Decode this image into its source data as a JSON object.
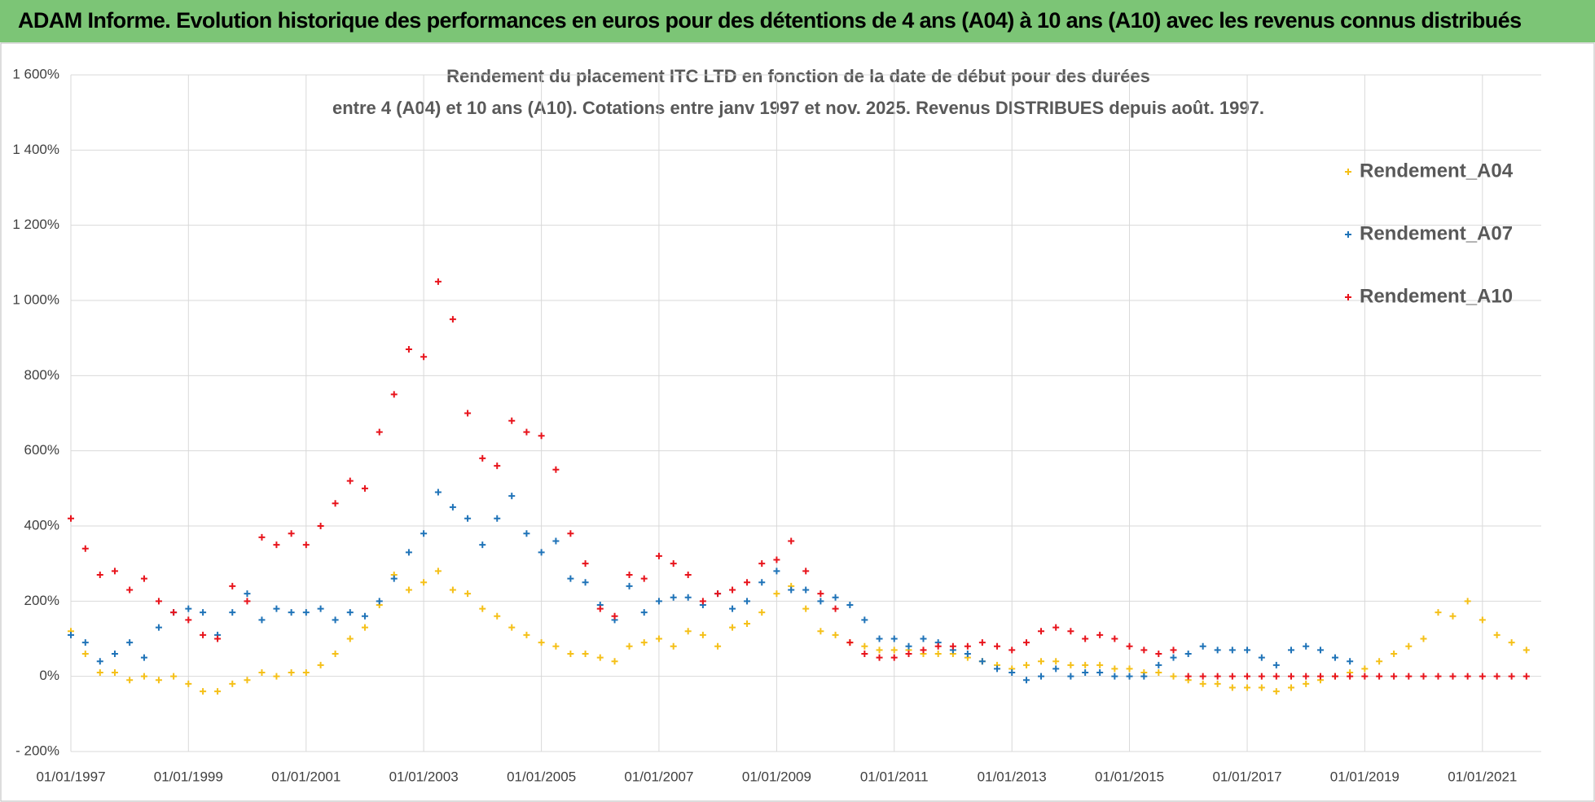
{
  "header": {
    "title": "ADAM Informe. Evolution historique des performances en euros pour des détentions de 4 ans (A04) à 10 ans (A10) avec les revenus connus distribués"
  },
  "chart_data": {
    "type": "scatter",
    "title": [
      "Rendement du placement ITC LTD en fonction de la date de début pour des durées",
      "entre 4 (A04) et 10 ans (A10). Cotations entre janv 1997 et nov. 2025. Revenus DISTRIBUES depuis août. 1997."
    ],
    "x": [
      "1997-01-01",
      "1997-04-01",
      "1997-07-01",
      "1997-10-01",
      "1998-01-01",
      "1998-04-01",
      "1998-07-01",
      "1998-10-01",
      "1999-01-01",
      "1999-04-01",
      "1999-07-01",
      "1999-10-01",
      "2000-01-01",
      "2000-04-01",
      "2000-07-01",
      "2000-10-01",
      "2001-01-01",
      "2001-04-01",
      "2001-07-01",
      "2001-10-01",
      "2002-01-01",
      "2002-04-01",
      "2002-07-01",
      "2002-10-01",
      "2003-01-01",
      "2003-04-01",
      "2003-07-01",
      "2003-10-01",
      "2004-01-01",
      "2004-04-01",
      "2004-07-01",
      "2004-10-01",
      "2005-01-01",
      "2005-04-01",
      "2005-07-01",
      "2005-10-01",
      "2006-01-01",
      "2006-04-01",
      "2006-07-01",
      "2006-10-01",
      "2007-01-01",
      "2007-04-01",
      "2007-07-01",
      "2007-10-01",
      "2008-01-01",
      "2008-04-01",
      "2008-07-01",
      "2008-10-01",
      "2009-01-01",
      "2009-04-01",
      "2009-07-01",
      "2009-10-01",
      "2010-01-01",
      "2010-04-01",
      "2010-07-01",
      "2010-10-01",
      "2011-01-01",
      "2011-04-01",
      "2011-07-01",
      "2011-10-01",
      "2012-01-01",
      "2012-04-01",
      "2012-07-01",
      "2012-10-01",
      "2013-01-01",
      "2013-04-01",
      "2013-07-01",
      "2013-10-01",
      "2014-01-01",
      "2014-04-01",
      "2014-07-01",
      "2014-10-01",
      "2015-01-01",
      "2015-04-01",
      "2015-07-01",
      "2015-10-01",
      "2016-01-01",
      "2016-04-01",
      "2016-07-01",
      "2016-10-01",
      "2017-01-01",
      "2017-04-01",
      "2017-07-01",
      "2017-10-01",
      "2018-01-01",
      "2018-04-01",
      "2018-07-01",
      "2018-10-01",
      "2019-01-01",
      "2019-04-01",
      "2019-07-01",
      "2019-10-01",
      "2020-01-01",
      "2020-04-01",
      "2020-07-01",
      "2020-10-01",
      "2021-01-01",
      "2021-04-01",
      "2021-07-01",
      "2021-10-01"
    ],
    "series": [
      {
        "name": "Rendement_A04",
        "color": "#f5c018",
        "values": [
          120,
          60,
          10,
          10,
          -10,
          0,
          -10,
          0,
          -20,
          -40,
          -40,
          -20,
          -10,
          10,
          0,
          10,
          10,
          30,
          60,
          100,
          130,
          190,
          270,
          230,
          250,
          280,
          230,
          220,
          180,
          160,
          130,
          110,
          90,
          80,
          60,
          60,
          50,
          40,
          80,
          90,
          100,
          80,
          120,
          110,
          80,
          130,
          140,
          170,
          220,
          240,
          180,
          120,
          110,
          90,
          80,
          70,
          70,
          70,
          60,
          60,
          60,
          50,
          40,
          30,
          20,
          30,
          40,
          40,
          30,
          30,
          30,
          20,
          20,
          10,
          10,
          0,
          -10,
          -20,
          -20,
          -30,
          -30,
          -30,
          -40,
          -30,
          -20,
          -10,
          0,
          10,
          20,
          40,
          60,
          80,
          100,
          170,
          160,
          200,
          150,
          110,
          90,
          70
        ]
      },
      {
        "name": "Rendement_A07",
        "color": "#1f73b8",
        "values": [
          110,
          90,
          40,
          60,
          90,
          50,
          130,
          170,
          180,
          170,
          110,
          170,
          220,
          150,
          180,
          170,
          170,
          180,
          150,
          170,
          160,
          200,
          260,
          330,
          380,
          490,
          450,
          420,
          350,
          420,
          480,
          380,
          330,
          360,
          260,
          250,
          190,
          150,
          240,
          170,
          200,
          210,
          210,
          190,
          220,
          180,
          200,
          250,
          280,
          230,
          230,
          200,
          210,
          190,
          150,
          100,
          100,
          80,
          100,
          90,
          70,
          60,
          40,
          20,
          10,
          -10,
          0,
          20,
          0,
          10,
          10,
          0,
          0,
          0,
          30,
          50,
          60,
          80,
          70,
          70,
          70,
          50,
          30,
          70,
          80,
          70,
          50,
          40,
          null,
          null,
          null,
          null,
          null,
          null,
          null,
          null,
          null,
          null,
          null,
          null
        ]
      },
      {
        "name": "Rendement_A10",
        "color": "#e8141c",
        "values": [
          420,
          340,
          270,
          280,
          230,
          260,
          200,
          170,
          150,
          110,
          100,
          240,
          200,
          370,
          350,
          380,
          350,
          400,
          460,
          520,
          500,
          650,
          750,
          870,
          850,
          1050,
          950,
          700,
          580,
          560,
          680,
          650,
          640,
          550,
          380,
          300,
          180,
          160,
          270,
          260,
          320,
          300,
          270,
          200,
          220,
          230,
          250,
          300,
          310,
          360,
          280,
          220,
          180,
          90,
          60,
          50,
          50,
          60,
          70,
          80,
          80,
          80,
          90,
          80,
          70,
          90,
          120,
          130,
          120,
          100,
          110,
          100,
          80,
          70,
          60,
          70,
          0,
          0,
          0,
          0,
          0,
          0,
          0,
          0,
          0,
          0,
          0,
          0,
          0,
          0,
          0,
          0,
          0,
          0,
          0,
          0,
          0,
          0,
          0,
          0
        ]
      }
    ],
    "xlim": [
      "1997-01-01",
      "2022-01-01"
    ],
    "xticks": [
      {
        "value": "1997-01-01",
        "label": "01/01/1997"
      },
      {
        "value": "1999-01-01",
        "label": "01/01/1999"
      },
      {
        "value": "2001-01-01",
        "label": "01/01/2001"
      },
      {
        "value": "2003-01-01",
        "label": "01/01/2003"
      },
      {
        "value": "2005-01-01",
        "label": "01/01/2005"
      },
      {
        "value": "2007-01-01",
        "label": "01/01/2007"
      },
      {
        "value": "2009-01-01",
        "label": "01/01/2009"
      },
      {
        "value": "2011-01-01",
        "label": "01/01/2011"
      },
      {
        "value": "2013-01-01",
        "label": "01/01/2013"
      },
      {
        "value": "2015-01-01",
        "label": "01/01/2015"
      },
      {
        "value": "2017-01-01",
        "label": "01/01/2017"
      },
      {
        "value": "2019-01-01",
        "label": "01/01/2019"
      },
      {
        "value": "2021-01-01",
        "label": "01/01/2021"
      }
    ],
    "ylim": [
      -200,
      1600
    ],
    "yticks": [
      {
        "value": -200,
        "label": "- 200%"
      },
      {
        "value": 0,
        "label": "0%"
      },
      {
        "value": 200,
        "label": "200%"
      },
      {
        "value": 400,
        "label": "400%"
      },
      {
        "value": 600,
        "label": "600%"
      },
      {
        "value": 800,
        "label": "800%"
      },
      {
        "value": 1000,
        "label": "1 000%"
      },
      {
        "value": 1200,
        "label": "1 200%"
      },
      {
        "value": 1400,
        "label": "1 400%"
      },
      {
        "value": 1600,
        "label": "1 600%"
      }
    ],
    "grid": true,
    "legend": "upper right"
  }
}
